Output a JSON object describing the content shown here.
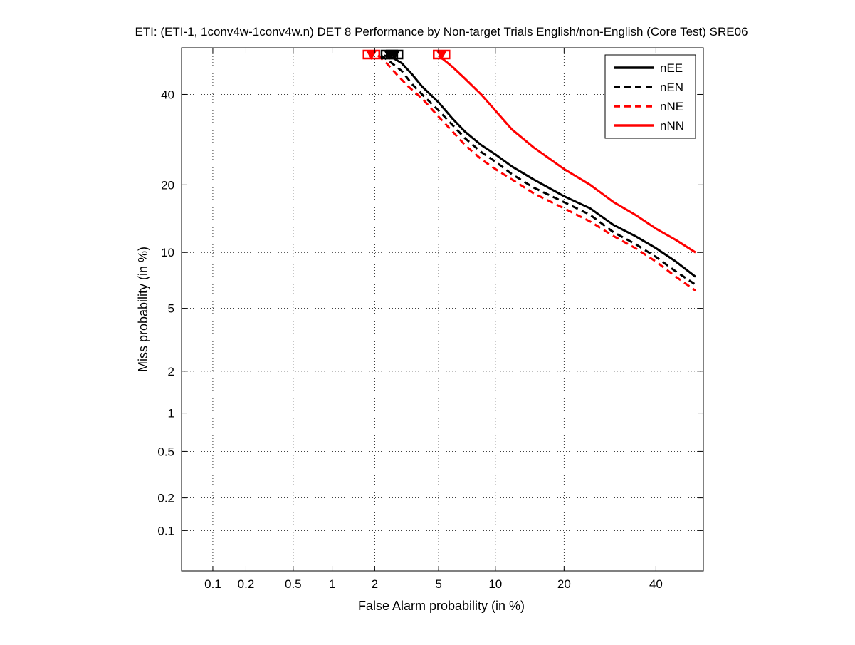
{
  "chart_data": {
    "type": "line",
    "title": "ETI: (ETI-1, 1conv4w-1conv4w.n) DET 8 Performance by Non-target Trials English/non-English (Core Test) SRE06",
    "xlabel": "False Alarm probability (in %)",
    "ylabel": "Miss probability (in %)",
    "x_scale": "probit",
    "y_scale": "probit",
    "xlim": [
      0.05,
      52
    ],
    "ylim": [
      0.04,
      52
    ],
    "x_ticks": [
      0.1,
      0.2,
      0.5,
      1,
      2,
      5,
      10,
      20,
      40
    ],
    "x_tick_labels": [
      "0.1",
      "0.2",
      "0.5",
      "1",
      "2",
      "5",
      "10",
      "20",
      "40"
    ],
    "y_ticks": [
      0.1,
      0.2,
      0.5,
      1,
      2,
      5,
      10,
      20,
      40
    ],
    "y_tick_labels": [
      "0.1",
      "0.2",
      "0.5",
      "1",
      "2",
      "5",
      "10",
      "20",
      "40"
    ],
    "grid": true,
    "legend_position": "top-right",
    "series": [
      {
        "name": "nEE",
        "color": "#000000",
        "style": "solid",
        "points": [
          [
            2.3,
            50
          ],
          [
            2.6,
            49.5
          ],
          [
            3.0,
            48
          ],
          [
            3.5,
            45
          ],
          [
            4.0,
            42
          ],
          [
            5.0,
            38
          ],
          [
            6.0,
            34
          ],
          [
            7.0,
            31
          ],
          [
            8.5,
            28
          ],
          [
            10,
            26
          ],
          [
            12,
            23.5
          ],
          [
            15,
            21
          ],
          [
            20,
            18
          ],
          [
            25,
            16
          ],
          [
            30,
            13.5
          ],
          [
            35,
            12
          ],
          [
            40,
            10.5
          ],
          [
            45,
            9
          ],
          [
            50,
            7.5
          ]
        ]
      },
      {
        "name": "nEN",
        "color": "#000000",
        "style": "dashed",
        "points": [
          [
            2.2,
            50
          ],
          [
            2.5,
            48.5
          ],
          [
            3.0,
            46
          ],
          [
            3.5,
            42.5
          ],
          [
            4.0,
            40
          ],
          [
            5.0,
            36
          ],
          [
            6.0,
            32.5
          ],
          [
            7.0,
            29.5
          ],
          [
            8.5,
            26.5
          ],
          [
            10,
            24.5
          ],
          [
            12,
            22
          ],
          [
            15,
            19.5
          ],
          [
            20,
            17
          ],
          [
            25,
            15
          ],
          [
            30,
            12.5
          ],
          [
            35,
            11
          ],
          [
            40,
            9.5
          ],
          [
            45,
            8
          ],
          [
            50,
            6.8
          ]
        ]
      },
      {
        "name": "nNE",
        "color": "#ff0000",
        "style": "dashed",
        "points": [
          [
            2.1,
            50
          ],
          [
            2.4,
            48
          ],
          [
            2.8,
            45
          ],
          [
            3.3,
            42
          ],
          [
            4.0,
            39
          ],
          [
            5.0,
            34.5
          ],
          [
            6.0,
            31
          ],
          [
            7.0,
            28
          ],
          [
            8.5,
            25
          ],
          [
            10,
            23
          ],
          [
            12,
            21
          ],
          [
            15,
            18.5
          ],
          [
            20,
            16
          ],
          [
            25,
            14
          ],
          [
            30,
            12
          ],
          [
            35,
            10.5
          ],
          [
            40,
            9
          ],
          [
            45,
            7.5
          ],
          [
            50,
            6.3
          ]
        ]
      },
      {
        "name": "nNN",
        "color": "#ff0000",
        "style": "solid",
        "points": [
          [
            5.0,
            50
          ],
          [
            6.0,
            47
          ],
          [
            7.0,
            44
          ],
          [
            8.5,
            40
          ],
          [
            10,
            36
          ],
          [
            12,
            31.5
          ],
          [
            15,
            27.5
          ],
          [
            20,
            23
          ],
          [
            25,
            20
          ],
          [
            30,
            17
          ],
          [
            35,
            15
          ],
          [
            40,
            13
          ],
          [
            45,
            11.5
          ],
          [
            50,
            10
          ]
        ]
      }
    ],
    "markers": [
      {
        "series": "nEE",
        "x": 2.7,
        "y": 49.5,
        "color": "#000000"
      },
      {
        "series": "nEN",
        "x": 2.5,
        "y": 49.5,
        "color": "#000000"
      },
      {
        "series": "nNE",
        "x": 1.9,
        "y": 49.5,
        "color": "#ff0000"
      },
      {
        "series": "nNN",
        "x": 5.2,
        "y": 49.5,
        "color": "#ff0000"
      }
    ]
  }
}
